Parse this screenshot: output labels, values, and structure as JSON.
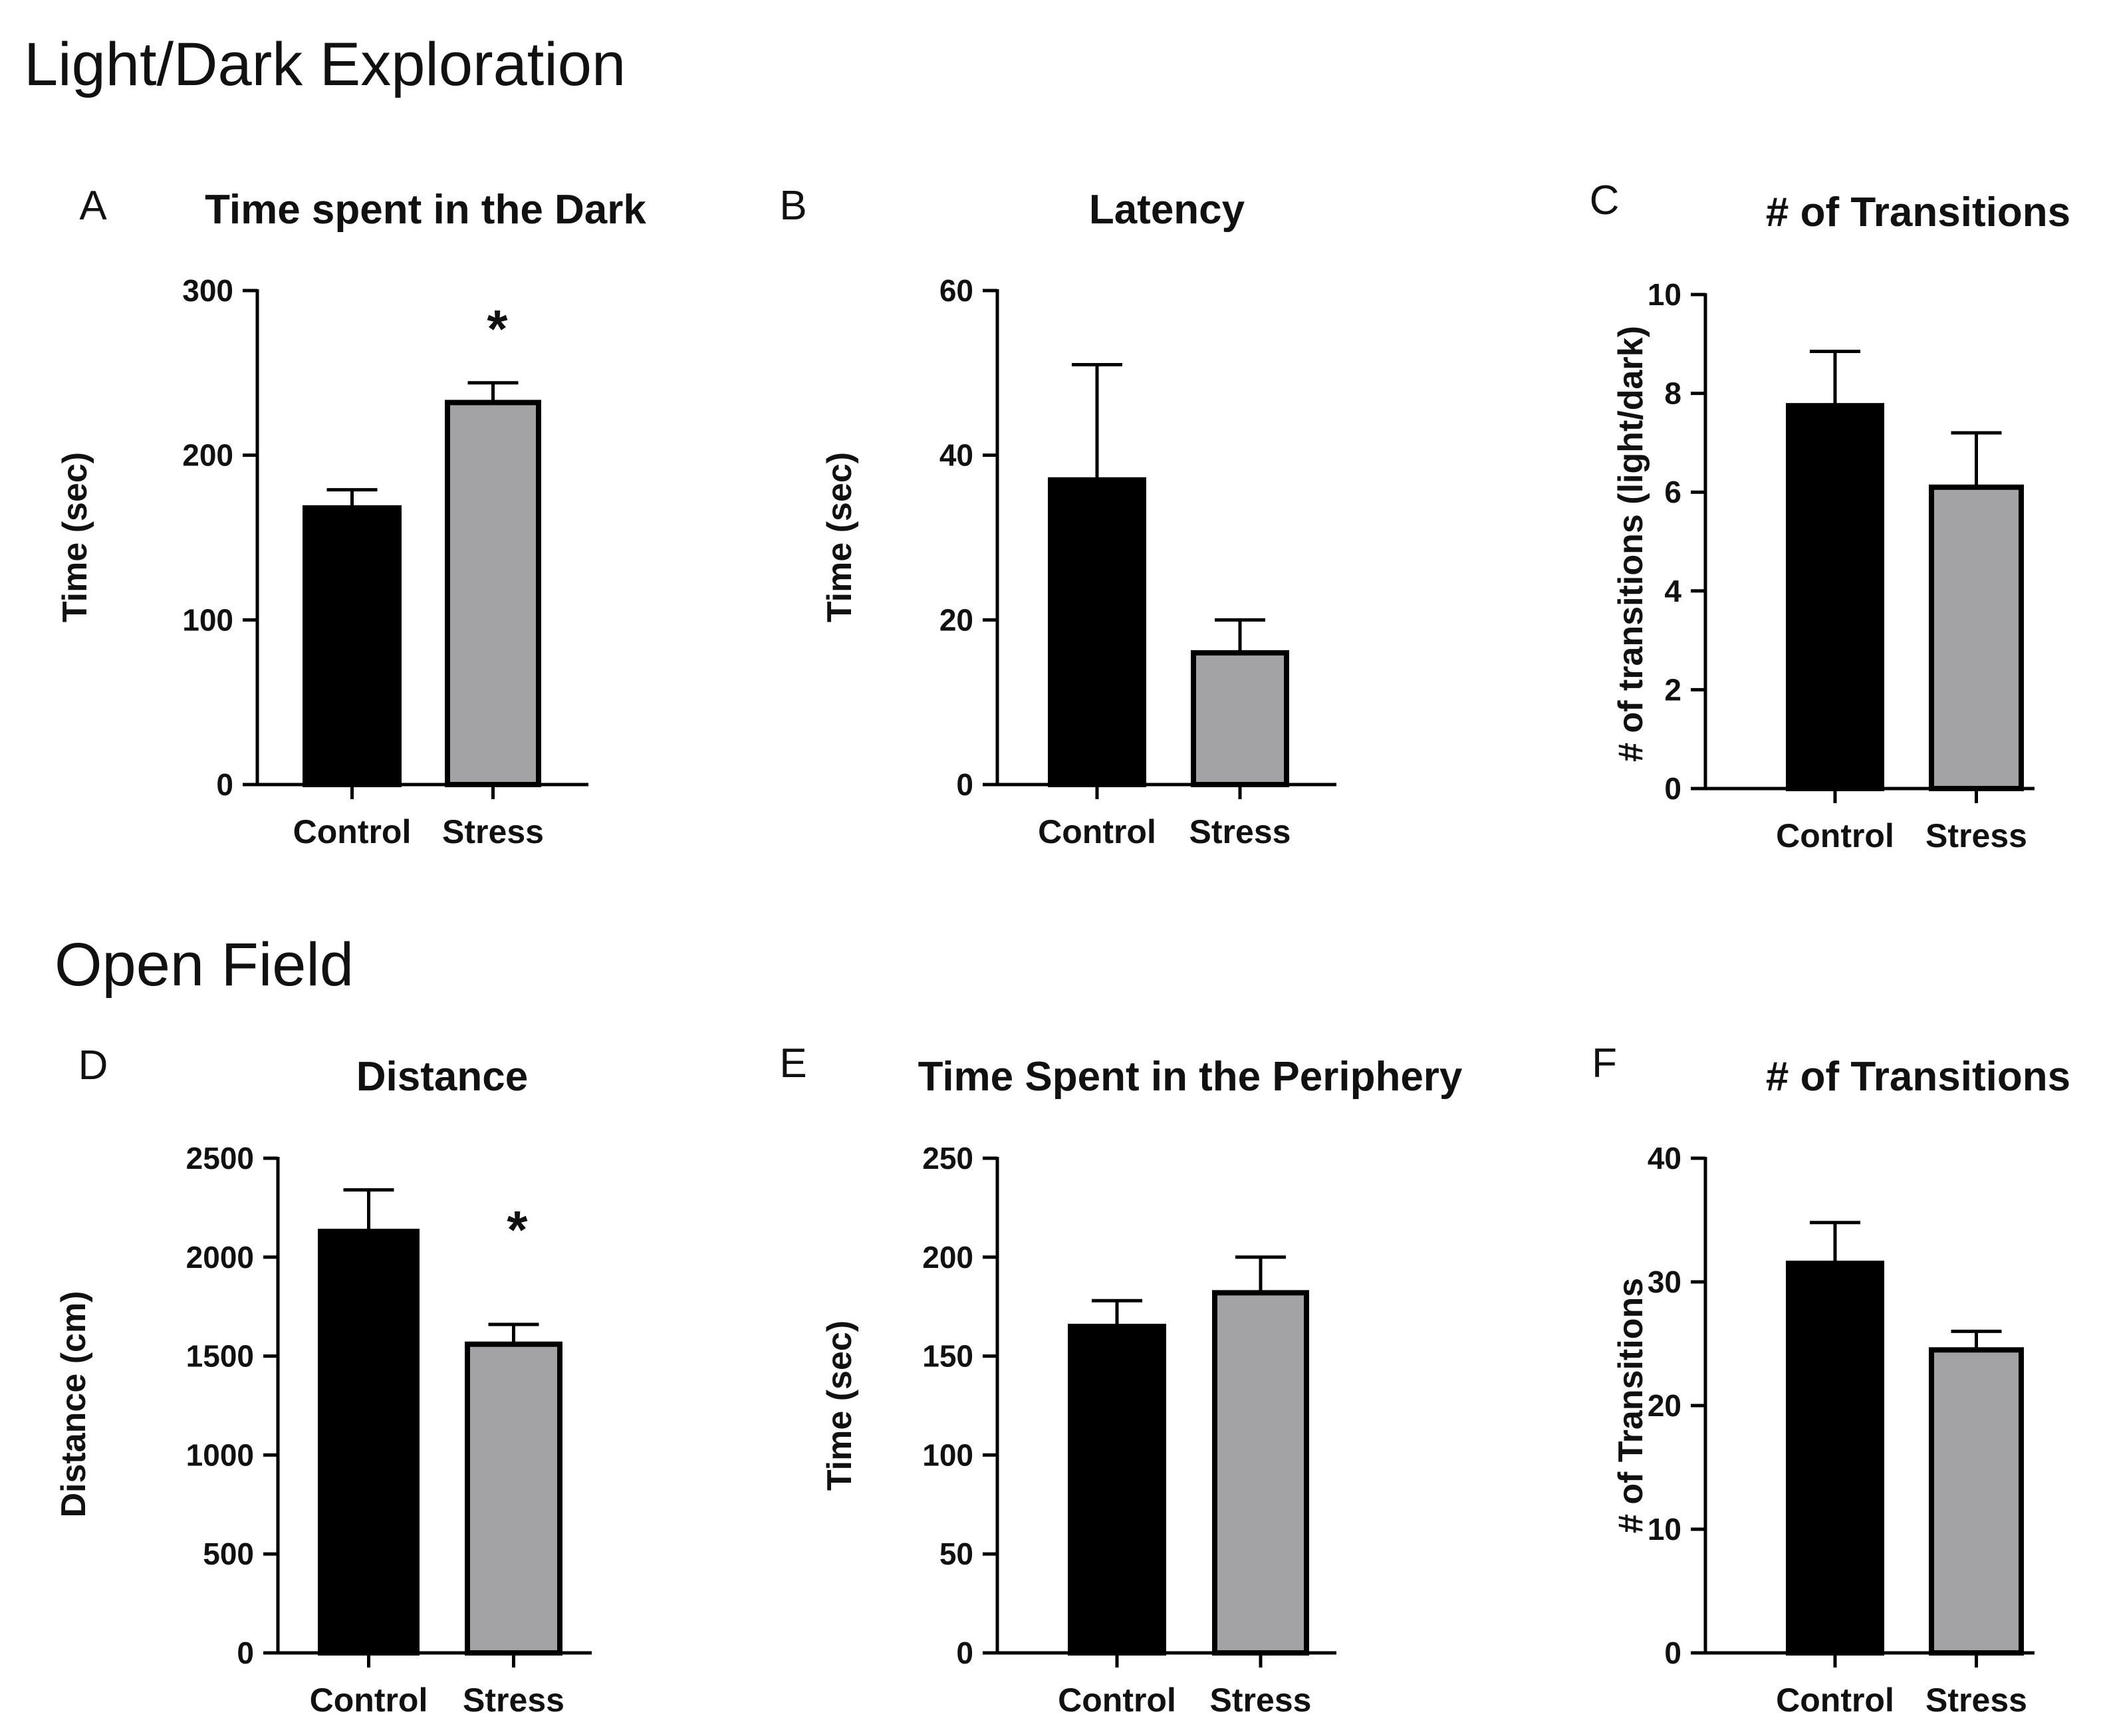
{
  "sections": [
    {
      "title": "Light/Dark Exploration"
    },
    {
      "title": "Open Field"
    }
  ],
  "colors": {
    "control": "#000000",
    "stress": "#a3a3a6",
    "axis": "#000000"
  },
  "chart_data": [
    {
      "type": "bar",
      "panel": "A",
      "title": "Time spent in the Dark",
      "xlabel": "",
      "ylabel": "Time (sec)",
      "categories": [
        "Control",
        "Stress"
      ],
      "values": [
        168,
        232
      ],
      "errors": [
        11,
        12
      ],
      "ylim": [
        0,
        300
      ],
      "yticks": [
        "0",
        "100",
        "200",
        "300"
      ],
      "significance": [
        "",
        "*"
      ]
    },
    {
      "type": "bar",
      "panel": "B",
      "title": "Latency",
      "xlabel": "",
      "ylabel": "Time (sec)",
      "categories": [
        "Control",
        "Stress"
      ],
      "values": [
        37,
        16
      ],
      "errors": [
        14,
        4
      ],
      "ylim": [
        0,
        60
      ],
      "yticks": [
        "0",
        "20",
        "40",
        "60"
      ],
      "significance": [
        "",
        ""
      ]
    },
    {
      "type": "bar",
      "panel": "C",
      "title": "# of Transitions",
      "xlabel": "",
      "ylabel": "# of transitions (light/dark)",
      "categories": [
        "Control",
        "Stress"
      ],
      "values": [
        7.75,
        6.1
      ],
      "errors": [
        1.1,
        1.1
      ],
      "ylim": [
        0,
        10
      ],
      "yticks": [
        "0",
        "2",
        "4",
        "6",
        "8",
        "10"
      ],
      "significance": [
        "",
        ""
      ]
    },
    {
      "type": "bar",
      "panel": "D",
      "title": "Distance",
      "xlabel": "",
      "ylabel": "Distance (cm)",
      "categories": [
        "Control",
        "Stress"
      ],
      "values": [
        2130,
        1560
      ],
      "errors": [
        210,
        100
      ],
      "ylim": [
        0,
        2500
      ],
      "yticks": [
        "0",
        "500",
        "1000",
        "1500",
        "2000",
        "2500"
      ],
      "significance": [
        "",
        "*"
      ]
    },
    {
      "type": "bar",
      "panel": "E",
      "title": "Time Spent in the Periphery",
      "xlabel": "",
      "ylabel": "Time (sec)",
      "categories": [
        "Control",
        "Stress"
      ],
      "values": [
        165,
        182
      ],
      "errors": [
        13,
        18
      ],
      "ylim": [
        0,
        250
      ],
      "yticks": [
        "0",
        "50",
        "100",
        "150",
        "200",
        "250"
      ],
      "significance": [
        "",
        ""
      ]
    },
    {
      "type": "bar",
      "panel": "F",
      "title": "# of Transitions",
      "xlabel": "",
      "ylabel": "# of Transitions",
      "categories": [
        "Control",
        "Stress"
      ],
      "values": [
        31.5,
        24.5
      ],
      "errors": [
        3.3,
        1.5
      ],
      "ylim": [
        0,
        40
      ],
      "yticks": [
        "0",
        "10",
        "20",
        "30",
        "40"
      ],
      "significance": [
        "",
        ""
      ]
    }
  ]
}
